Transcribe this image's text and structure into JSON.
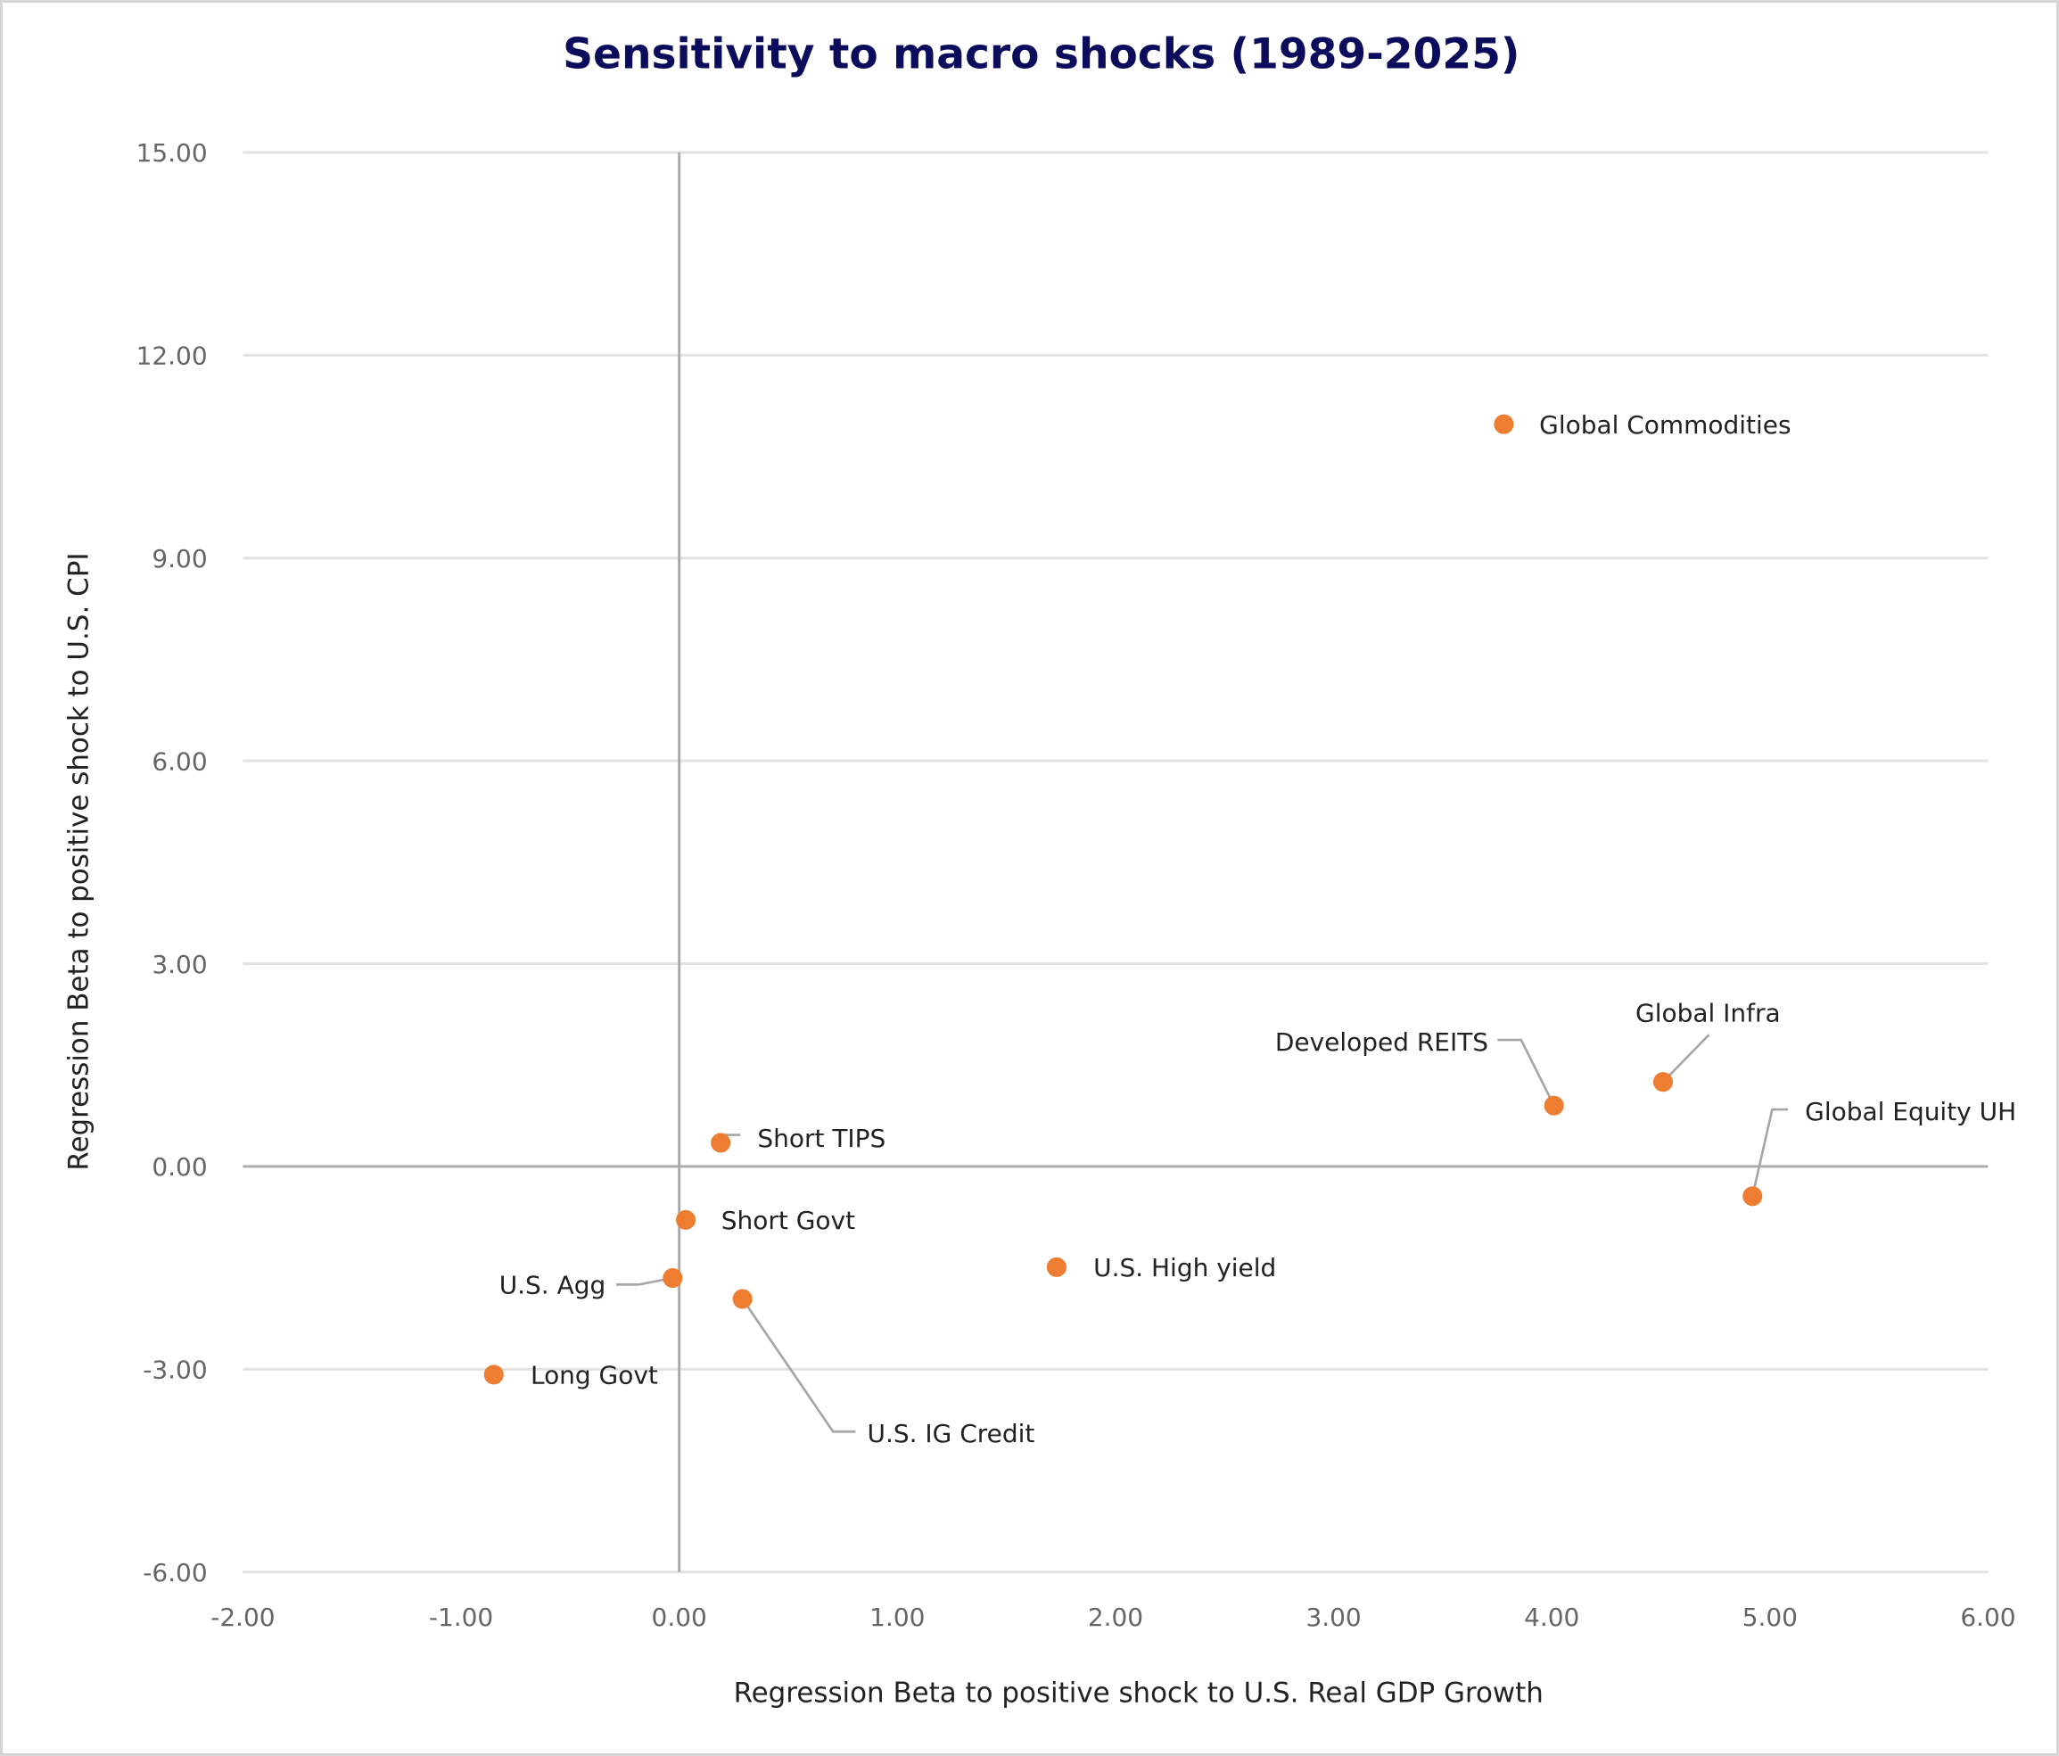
{
  "chart_data": {
    "type": "scatter",
    "title": "Sensitivity to macro shocks (1989-2025)",
    "xlabel": "Regression Beta to positive shock to U.S. Real GDP Growth",
    "ylabel": "Regression Beta to positive shock to U.S. CPI",
    "xlim": [
      -2,
      6
    ],
    "ylim": [
      -6,
      15
    ],
    "x_ticks": [
      "-2.00",
      "-1.00",
      "0.00",
      "1.00",
      "2.00",
      "3.00",
      "4.00",
      "5.00",
      "6.00"
    ],
    "y_ticks": [
      "-6.00",
      "-3.00",
      "0.00",
      "3.00",
      "6.00",
      "9.00",
      "12.00",
      "15.00"
    ],
    "grid": "horizontal",
    "marker_color": "#ED7D31",
    "title_color": "#0C0C5C",
    "points": [
      {
        "label": "Global Commodities",
        "x": 3.78,
        "y": 10.98
      },
      {
        "label": "Developed REITS",
        "x": 4.01,
        "y": 0.9
      },
      {
        "label": "Global Infra",
        "x": 4.51,
        "y": 1.25
      },
      {
        "label": "Global Equity UH",
        "x": 4.92,
        "y": -0.44
      },
      {
        "label": "Short TIPS",
        "x": 0.19,
        "y": 0.35
      },
      {
        "label": "Short Govt",
        "x": 0.03,
        "y": -0.79
      },
      {
        "label": "U.S. Agg",
        "x": -0.03,
        "y": -1.65
      },
      {
        "label": "U.S. IG Credit",
        "x": 0.29,
        "y": -1.96
      },
      {
        "label": "U.S. High yield",
        "x": 1.73,
        "y": -1.49
      },
      {
        "label": "Long Govt",
        "x": -0.85,
        "y": -3.08
      }
    ]
  }
}
